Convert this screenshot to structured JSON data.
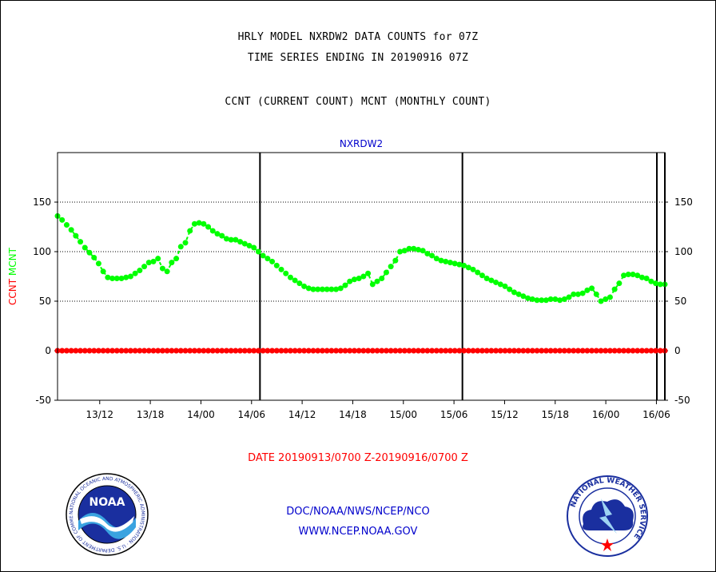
{
  "header": {
    "line1": "HRLY MODEL NXRDW2 DATA COUNTS for 07Z",
    "line2": "TIME SERIES ENDING IN 20190916 07Z",
    "line3": "CCNT (CURRENT COUNT) MCNT (MONTHLY COUNT)"
  },
  "chart_data": {
    "type": "line",
    "title": "NXRDW2",
    "ylabel_parts": [
      {
        "text": "CCNT",
        "color": "#ff0000"
      },
      {
        "text": "MCNT",
        "color": "#00ff00"
      }
    ],
    "ylim": [
      -50,
      200
    ],
    "yticks": [
      -50,
      0,
      50,
      100,
      150
    ],
    "xlim": [
      "13/07",
      "16/07"
    ],
    "xticks": [
      "13/12",
      "13/18",
      "14/00",
      "14/06",
      "14/12",
      "14/18",
      "15/00",
      "15/06",
      "15/12",
      "15/18",
      "16/00",
      "16/06"
    ],
    "grid": "horizontal dotted",
    "series": [
      {
        "name": "MCNT",
        "color": "#00ff00",
        "values": [
          136,
          132,
          127,
          122,
          116,
          110,
          104,
          99,
          94,
          88,
          80,
          74,
          73,
          73,
          73,
          74,
          75,
          78,
          81,
          85,
          89,
          90,
          93,
          83,
          80,
          89,
          93,
          105,
          109,
          121,
          128,
          129,
          128,
          125,
          121,
          118,
          116,
          113,
          112,
          112,
          110,
          108,
          106,
          104,
          100,
          96,
          93,
          90,
          86,
          82,
          78,
          74,
          71,
          68,
          65,
          63,
          62,
          62,
          62,
          62,
          62,
          62,
          63,
          66,
          70,
          72,
          73,
          75,
          78,
          67,
          70,
          73,
          79,
          85,
          91,
          100,
          101,
          103,
          103,
          102,
          101,
          98,
          96,
          93,
          91,
          90,
          89,
          88,
          87,
          86,
          84,
          82,
          79,
          76,
          73,
          71,
          69,
          67,
          65,
          62,
          59,
          57,
          55,
          53,
          52,
          51,
          51,
          51,
          52,
          52,
          51,
          52,
          54,
          57,
          57,
          58,
          61,
          63,
          57,
          50,
          52,
          54,
          62,
          68,
          76,
          77,
          77,
          76,
          74,
          73,
          70,
          68,
          67,
          67
        ]
      },
      {
        "name": "CCNT",
        "color": "#ff0000",
        "constant": 0,
        "points": 134
      }
    ]
  },
  "footer": {
    "date_range": "DATE 20190913/0700 Z-20190916/0700 Z",
    "agency": "DOC/NOAA/NWS/NCEP/NCO",
    "url": "WWW.NCEP.NOAA.GOV"
  },
  "logos": {
    "noaa": {
      "label": "NOAA",
      "ring_text": "NATIONAL OCEANIC AND ATMOSPHERIC ADMINISTRATION · U.S. DEPARTMENT OF COMMERCE"
    },
    "nws": {
      "ring_text": "NATIONAL WEATHER SERVICE"
    }
  }
}
